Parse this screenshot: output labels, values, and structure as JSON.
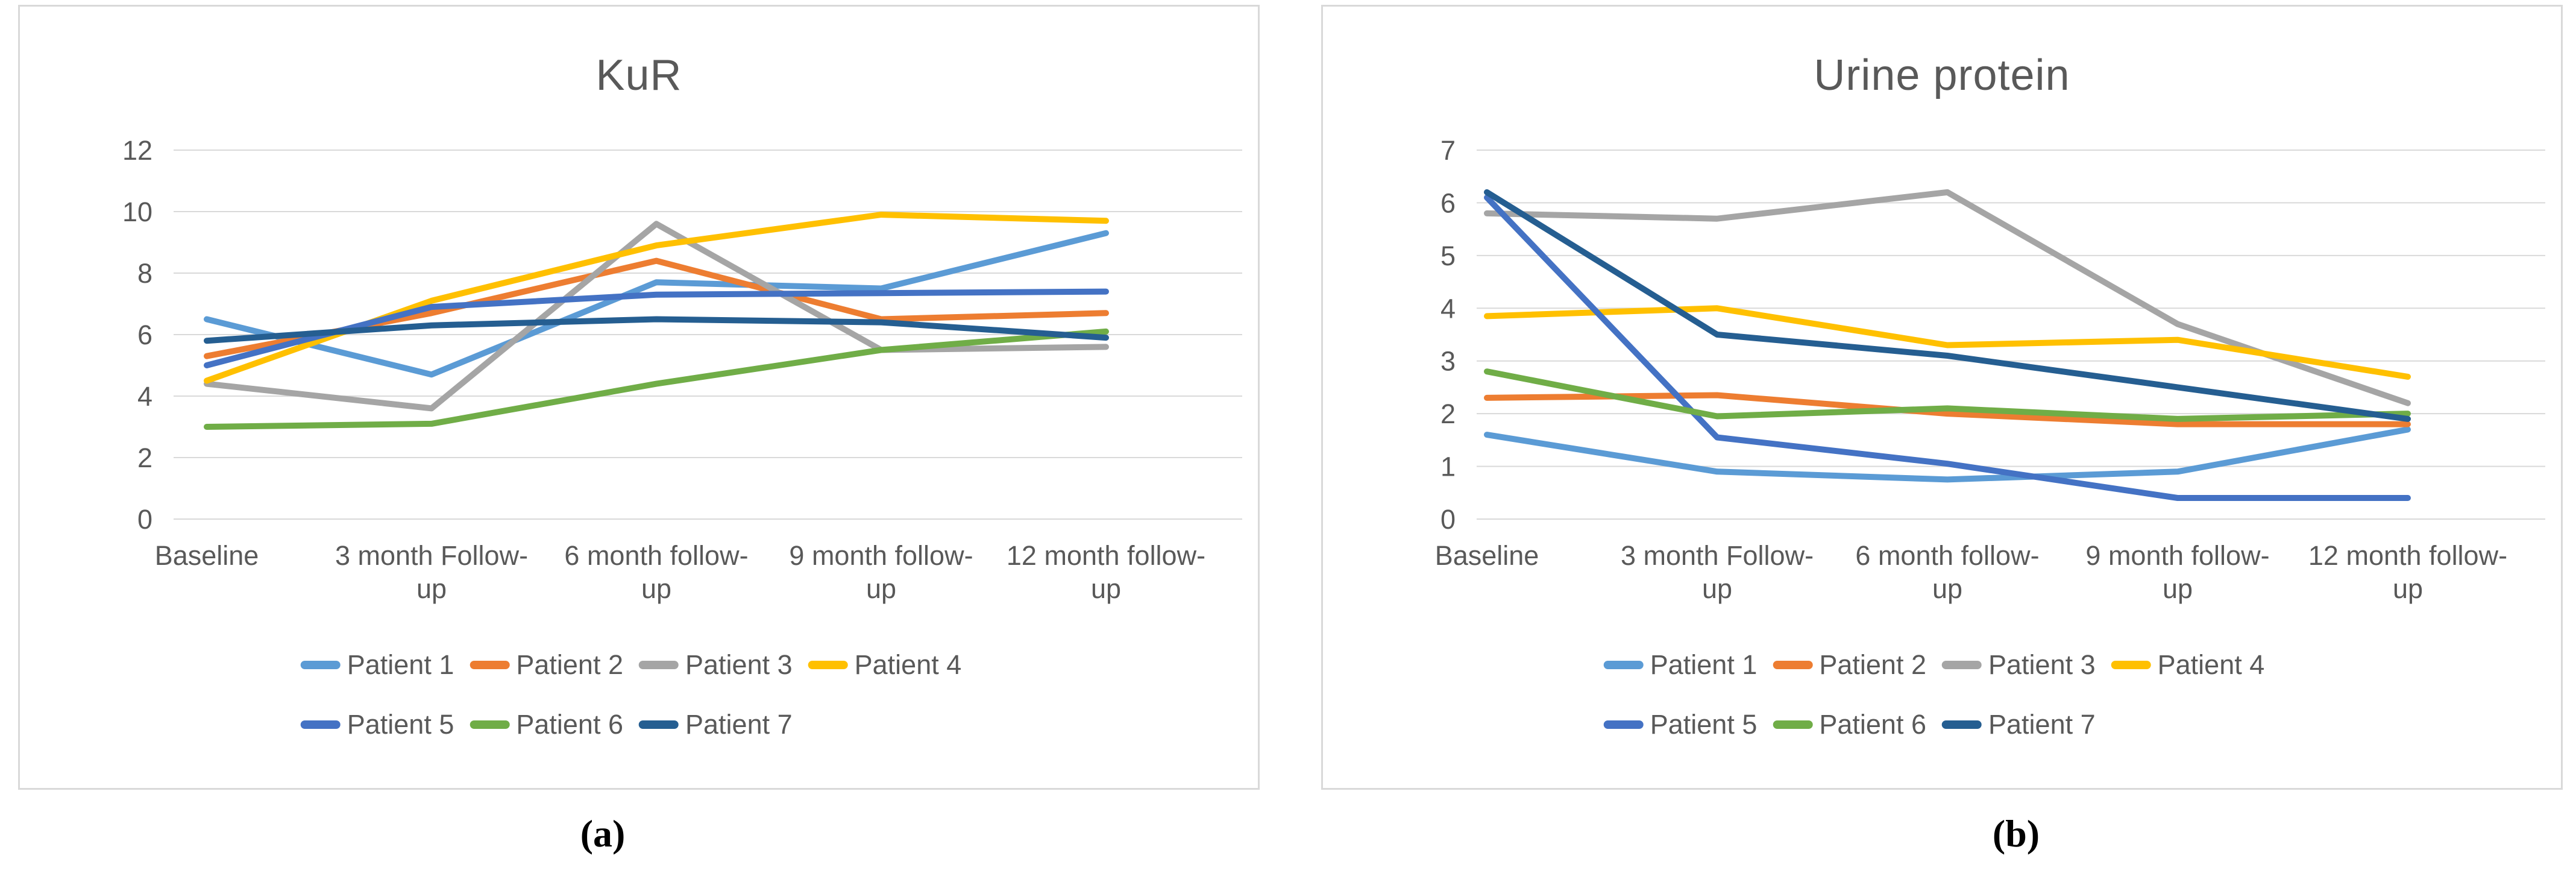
{
  "figure": {
    "captions": {
      "a": "(a)",
      "b": "(b)"
    }
  },
  "chart_data": [
    {
      "type": "line",
      "title": "KuR",
      "categories": [
        "Baseline",
        "3 month Follow-up",
        "6 month follow-up",
        "9 month follow-up",
        "12 month follow-up"
      ],
      "y_ticks": [
        "0",
        "2",
        "4",
        "6",
        "8",
        "10",
        "12"
      ],
      "ylim": [
        0,
        12
      ],
      "ystep": 2,
      "grid": "horizontal",
      "legend_position": "bottom",
      "xlabel": "",
      "ylabel": "",
      "series": [
        {
          "name": "Patient 1",
          "color": "#5B9BD5",
          "values": [
            6.5,
            4.7,
            7.7,
            7.5,
            9.3
          ]
        },
        {
          "name": "Patient 2",
          "color": "#ED7D31",
          "values": [
            5.3,
            6.7,
            8.4,
            6.5,
            6.7
          ]
        },
        {
          "name": "Patient 3",
          "color": "#A5A5A5",
          "values": [
            4.4,
            3.6,
            9.6,
            5.5,
            5.6
          ]
        },
        {
          "name": "Patient 4",
          "color": "#FFC000",
          "values": [
            4.5,
            7.1,
            8.9,
            9.9,
            9.7
          ]
        },
        {
          "name": "Patient 5",
          "color": "#4472C4",
          "values": [
            5.0,
            6.9,
            7.3,
            7.35,
            7.4
          ]
        },
        {
          "name": "Patient 6",
          "color": "#70AD47",
          "values": [
            3.0,
            3.1,
            4.4,
            5.5,
            6.1
          ]
        },
        {
          "name": "Patient 7",
          "color": "#255E91",
          "values": [
            5.8,
            6.3,
            6.5,
            6.4,
            5.9
          ]
        }
      ]
    },
    {
      "type": "line",
      "title": "Urine protein",
      "categories": [
        "Baseline",
        "3 month Follow-up",
        "6 month follow-up",
        "9 month follow-up",
        "12 month follow-up"
      ],
      "y_ticks": [
        "0",
        "1",
        "2",
        "3",
        "4",
        "5",
        "6",
        "7"
      ],
      "ylim": [
        0,
        7
      ],
      "ystep": 1,
      "grid": "horizontal",
      "legend_position": "bottom",
      "xlabel": "",
      "ylabel": "",
      "series": [
        {
          "name": "Patient 1",
          "color": "#5B9BD5",
          "values": [
            1.6,
            0.9,
            0.75,
            0.9,
            1.7
          ]
        },
        {
          "name": "Patient 2",
          "color": "#ED7D31",
          "values": [
            2.3,
            2.35,
            2.0,
            1.8,
            1.8
          ]
        },
        {
          "name": "Patient 3",
          "color": "#A5A5A5",
          "values": [
            5.8,
            5.7,
            6.2,
            3.7,
            2.2
          ]
        },
        {
          "name": "Patient 4",
          "color": "#FFC000",
          "values": [
            3.85,
            4.0,
            3.3,
            3.4,
            2.7
          ]
        },
        {
          "name": "Patient 5",
          "color": "#4472C4",
          "values": [
            6.1,
            1.55,
            1.05,
            0.4,
            0.4
          ]
        },
        {
          "name": "Patient 6",
          "color": "#70AD47",
          "values": [
            2.8,
            1.95,
            2.1,
            1.9,
            2.0
          ]
        },
        {
          "name": "Patient 7",
          "color": "#255E91",
          "values": [
            6.2,
            3.5,
            3.1,
            2.5,
            1.9
          ]
        }
      ]
    }
  ]
}
